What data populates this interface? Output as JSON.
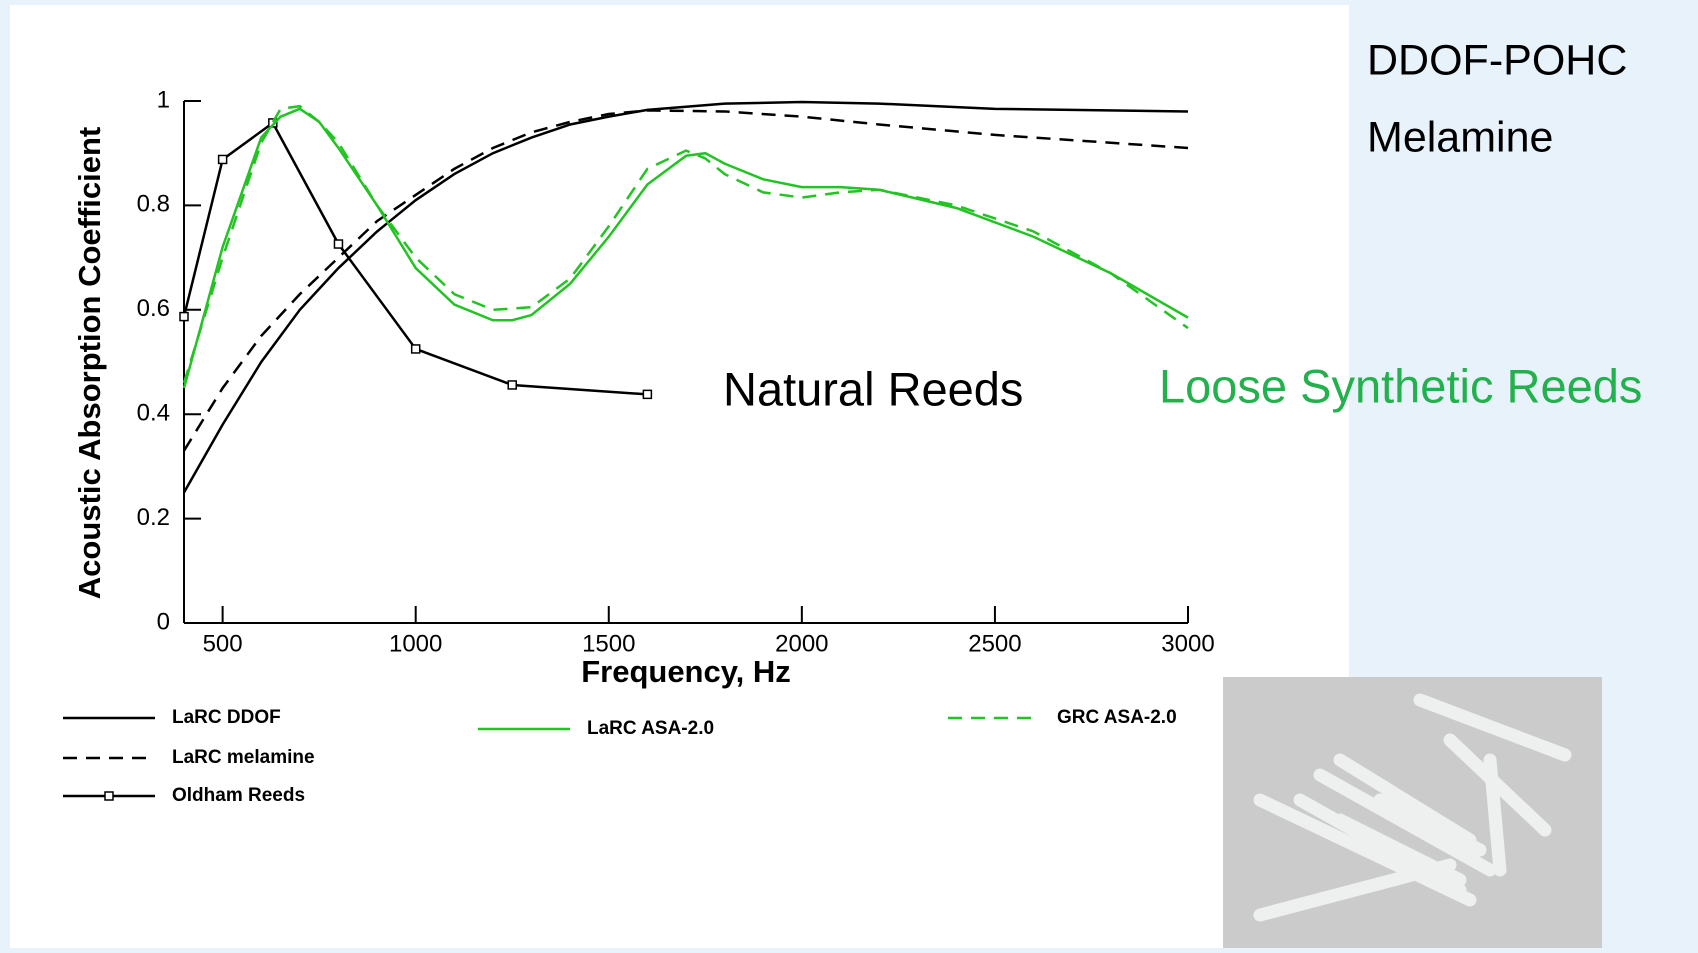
{
  "chart_data": {
    "type": "line",
    "annotations": [
      "DDOF-POHC",
      "Melamine",
      "Natural Reeds",
      "Loose Synthetic Reeds"
    ],
    "xlabel": "Frequency, Hz",
    "ylabel": "Acoustic Absorption Coefficient",
    "xlim": [
      400,
      3000
    ],
    "ylim": [
      0,
      1
    ],
    "xticks": [
      500,
      1000,
      1500,
      2000,
      2500,
      3000
    ],
    "yticks": [
      0,
      0.2,
      0.4,
      0.6,
      0.8,
      1
    ],
    "series": [
      {
        "name": "LaRC DDOF",
        "color": "#000000",
        "dash": false,
        "x": [
          400,
          500,
          600,
          700,
          800,
          900,
          1000,
          1100,
          1200,
          1300,
          1400,
          1500,
          1600,
          1800,
          2000,
          2200,
          2500,
          3000
        ],
        "values": [
          0.25,
          0.38,
          0.5,
          0.6,
          0.68,
          0.75,
          0.81,
          0.86,
          0.9,
          0.93,
          0.955,
          0.97,
          0.983,
          0.995,
          0.998,
          0.995,
          0.985,
          0.98
        ]
      },
      {
        "name": "LaRC melamine",
        "color": "#000000",
        "dash": true,
        "x": [
          400,
          500,
          600,
          700,
          800,
          900,
          1000,
          1100,
          1200,
          1300,
          1400,
          1500,
          1600,
          1800,
          2000,
          2200,
          2500,
          3000
        ],
        "values": [
          0.33,
          0.45,
          0.55,
          0.63,
          0.7,
          0.77,
          0.82,
          0.87,
          0.91,
          0.94,
          0.96,
          0.975,
          0.982,
          0.98,
          0.97,
          0.955,
          0.935,
          0.91
        ]
      },
      {
        "name": "Oldham Reeds",
        "color": "#000000",
        "dash": false,
        "marker": "square",
        "x": [
          400,
          500,
          630,
          800,
          1000,
          1250,
          1600
        ],
        "values": [
          0.587,
          0.888,
          0.958,
          0.726,
          0.525,
          0.456,
          0.438
        ]
      },
      {
        "name": "LaRC ASA-2.0",
        "color": "#22c322",
        "dash": false,
        "x": [
          400,
          500,
          600,
          650,
          700,
          750,
          800,
          900,
          1000,
          1100,
          1200,
          1250,
          1300,
          1400,
          1500,
          1600,
          1700,
          1750,
          1800,
          1900,
          2000,
          2100,
          2200,
          2400,
          2600,
          2800,
          3000
        ],
        "values": [
          0.45,
          0.72,
          0.93,
          0.97,
          0.985,
          0.96,
          0.91,
          0.8,
          0.68,
          0.61,
          0.58,
          0.58,
          0.59,
          0.65,
          0.74,
          0.84,
          0.895,
          0.9,
          0.88,
          0.85,
          0.835,
          0.835,
          0.83,
          0.795,
          0.74,
          0.67,
          0.585
        ]
      },
      {
        "name": "GRC ASA-2.0",
        "color": "#22c322",
        "dash": true,
        "x": [
          400,
          500,
          600,
          650,
          700,
          750,
          800,
          900,
          1000,
          1100,
          1200,
          1300,
          1400,
          1500,
          1600,
          1700,
          1750,
          1800,
          1900,
          2000,
          2100,
          2200,
          2400,
          2600,
          2800,
          3000
        ],
        "values": [
          0.46,
          0.7,
          0.92,
          0.985,
          0.99,
          0.96,
          0.92,
          0.8,
          0.7,
          0.63,
          0.6,
          0.605,
          0.66,
          0.76,
          0.87,
          0.905,
          0.89,
          0.86,
          0.825,
          0.815,
          0.825,
          0.83,
          0.8,
          0.75,
          0.67,
          0.565
        ]
      }
    ]
  }
}
